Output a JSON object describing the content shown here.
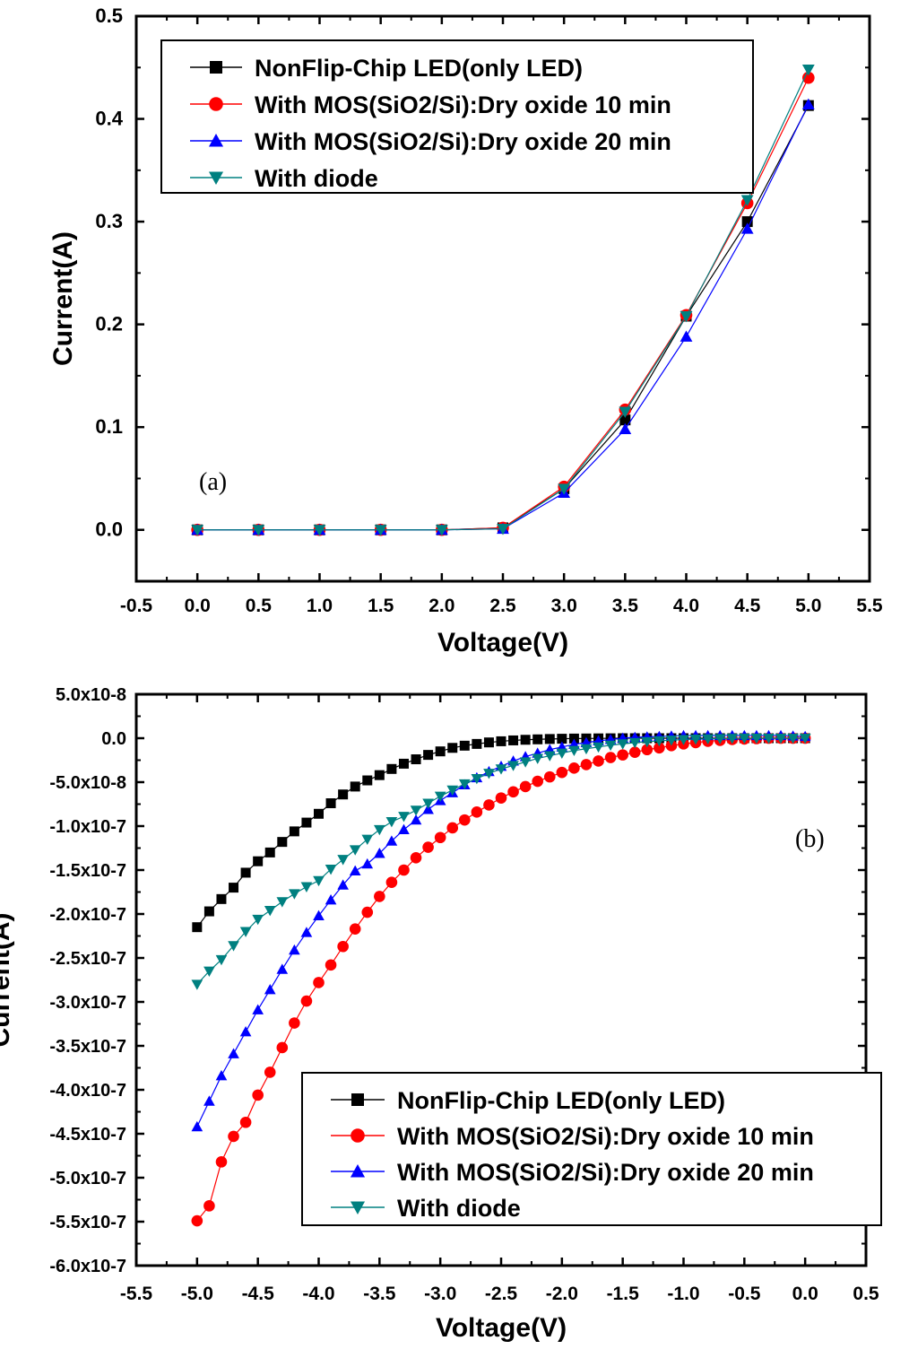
{
  "charts": [
    {
      "panel_label": "(a)",
      "xlabel": "Voltage(V)",
      "ylabel": "Current(A)",
      "xlim": [
        -0.5,
        5.5
      ],
      "ylim": [
        -0.05,
        0.5
      ],
      "x_ticks": [
        "-0.5",
        "0.0",
        "0.5",
        "1.0",
        "1.5",
        "2.0",
        "2.5",
        "3.0",
        "3.5",
        "4.0",
        "4.5",
        "5.0",
        "5.5"
      ],
      "y_ticks": [
        "0.0",
        "0.1",
        "0.2",
        "0.3",
        "0.4",
        "0.5"
      ],
      "legend": [
        "NonFlip-Chip LED(only LED)",
        "With MOS(SiO2/Si):Dry oxide 10 min",
        "With MOS(SiO2/Si):Dry oxide 20 min",
        "With diode"
      ]
    },
    {
      "panel_label": "(b)",
      "xlabel": "Voltage(V)",
      "ylabel": "Current(A)",
      "xlim": [
        -5.5,
        0.5
      ],
      "ylim": [
        -6e-07,
        5e-08
      ],
      "x_ticks": [
        "-5.5",
        "-5.0",
        "-4.5",
        "-4.0",
        "-3.5",
        "-3.0",
        "-2.5",
        "-2.0",
        "-1.5",
        "-1.0",
        "-0.5",
        "0.0",
        "0.5"
      ],
      "y_ticks": [
        "5.0x10-8",
        "0.0",
        "-5.0x10-8",
        "-1.0x10-7",
        "-1.5x10-7",
        "-2.0x10-7",
        "-2.5x10-7",
        "-3.0x10-7",
        "-3.5x10-7",
        "-4.0x10-7",
        "-4.5x10-7",
        "-5.0x10-7",
        "-5.5x10-7",
        "-6.0x10-7"
      ],
      "legend": [
        "NonFlip-Chip LED(only LED)",
        "With MOS(SiO2/Si):Dry oxide 10 min",
        "With MOS(SiO2/Si):Dry oxide 20 min",
        "With diode"
      ]
    }
  ],
  "series_styles": [
    {
      "color": "#000000",
      "marker": "square"
    },
    {
      "color": "#ff0000",
      "marker": "circle"
    },
    {
      "color": "#0000ff",
      "marker": "triangle-up"
    },
    {
      "color": "#008080",
      "marker": "triangle-down"
    }
  ],
  "chart_data": [
    {
      "type": "line",
      "title": "",
      "xlabel": "Voltage(V)",
      "ylabel": "Current(A)",
      "xlim": [
        -0.5,
        5.5
      ],
      "ylim": [
        -0.05,
        0.5
      ],
      "grid": false,
      "legend_position": "top-left",
      "x": [
        0.0,
        0.5,
        1.0,
        1.5,
        2.0,
        2.5,
        3.0,
        3.5,
        4.0,
        4.5,
        5.0
      ],
      "series": [
        {
          "name": "NonFlip-Chip LED(only LED)",
          "values": [
            0,
            0,
            0,
            0,
            0,
            0.002,
            0.04,
            0.107,
            0.208,
            0.3,
            0.413
          ]
        },
        {
          "name": "With MOS(SiO2/Si):Dry oxide 10 min",
          "values": [
            0,
            0,
            0,
            0,
            0,
            0.002,
            0.042,
            0.117,
            0.209,
            0.318,
            0.44
          ]
        },
        {
          "name": "With MOS(SiO2/Si):Dry oxide 20 min",
          "values": [
            0,
            0,
            0,
            0,
            0,
            0.001,
            0.036,
            0.098,
            0.188,
            0.293,
            0.414
          ]
        },
        {
          "name": "With diode",
          "values": [
            0,
            0,
            0,
            0,
            0,
            0.001,
            0.04,
            0.115,
            0.208,
            0.321,
            0.448
          ]
        }
      ]
    },
    {
      "type": "line",
      "title": "",
      "xlabel": "Voltage(V)",
      "ylabel": "Current(A)",
      "xlim": [
        -5.5,
        0.5
      ],
      "ylim": [
        -6e-07,
        5e-08
      ],
      "grid": false,
      "legend_position": "bottom-right",
      "x": [
        -5.0,
        -4.9,
        -4.8,
        -4.7,
        -4.6,
        -4.5,
        -4.4,
        -4.3,
        -4.2,
        -4.1,
        -4.0,
        -3.9,
        -3.8,
        -3.7,
        -3.6,
        -3.5,
        -3.4,
        -3.3,
        -3.2,
        -3.1,
        -3.0,
        -2.9,
        -2.8,
        -2.7,
        -2.6,
        -2.5,
        -2.4,
        -2.3,
        -2.2,
        -2.1,
        -2.0,
        -1.9,
        -1.8,
        -1.7,
        -1.6,
        -1.5,
        -1.4,
        -1.3,
        -1.2,
        -1.1,
        -1.0,
        -0.9,
        -0.8,
        -0.7,
        -0.6,
        -0.5,
        -0.4,
        -0.3,
        -0.2,
        -0.1,
        0.0
      ],
      "series": [
        {
          "name": "NonFlip-Chip LED(only LED)",
          "values": [
            -2.15e-07,
            -1.97e-07,
            -1.83e-07,
            -1.7e-07,
            -1.53e-07,
            -1.4e-07,
            -1.3e-07,
            -1.18e-07,
            -1.06e-07,
            -9.6e-08,
            -8.6e-08,
            -7.4e-08,
            -6.4e-08,
            -5.5e-08,
            -4.8e-08,
            -4.2e-08,
            -3.5e-08,
            -2.9e-08,
            -2.4e-08,
            -1.9e-08,
            -1.5e-08,
            -1.1e-08,
            -8.5e-09,
            -6.5e-09,
            -4.8e-09,
            -3.5e-09,
            -2.5e-09,
            -1.8e-09,
            -1.3e-09,
            -9e-10,
            -6e-10,
            -4e-10,
            -3e-10,
            -2e-10,
            -1e-10,
            0,
            0,
            0,
            0,
            0,
            0,
            0,
            0,
            0,
            0,
            0,
            0,
            0,
            0,
            0,
            0
          ]
        },
        {
          "name": "With MOS(SiO2/Si):Dry oxide 10 min",
          "values": [
            -5.49e-07,
            -5.32e-07,
            -4.82e-07,
            -4.53e-07,
            -4.37e-07,
            -4.06e-07,
            -3.8e-07,
            -3.52e-07,
            -3.24e-07,
            -2.99e-07,
            -2.78e-07,
            -2.58e-07,
            -2.37e-07,
            -2.17e-07,
            -1.98e-07,
            -1.8e-07,
            -1.64e-07,
            -1.5e-07,
            -1.36e-07,
            -1.24e-07,
            -1.13e-07,
            -1.02e-07,
            -9.3e-08,
            -8.4e-08,
            -7.6e-08,
            -6.8e-08,
            -6.1e-08,
            -5.5e-08,
            -4.9e-08,
            -4.4e-08,
            -3.9e-08,
            -3.4e-08,
            -3e-08,
            -2.6e-08,
            -2.2e-08,
            -1.9e-08,
            -1.6e-08,
            -1.3e-08,
            -1.1e-08,
            -8.5e-09,
            -6.5e-09,
            -5e-09,
            -3.5e-09,
            -2.5e-09,
            -1.5e-09,
            -1e-09,
            -5e-10,
            0,
            0,
            0,
            0
          ]
        },
        {
          "name": "With MOS(SiO2/Si):Dry oxide 20 min",
          "values": [
            -4.42e-07,
            -4.13e-07,
            -3.84e-07,
            -3.59e-07,
            -3.34e-07,
            -3.09e-07,
            -2.86e-07,
            -2.63e-07,
            -2.41e-07,
            -2.21e-07,
            -2.02e-07,
            -1.84e-07,
            -1.67e-07,
            -1.51e-07,
            -1.43e-07,
            -1.31e-07,
            -1.17e-07,
            -1.04e-07,
            -9.3e-08,
            -8.1e-08,
            -7.1e-08,
            -6.2e-08,
            -5.3e-08,
            -4.5e-08,
            -3.8e-08,
            -3.2e-08,
            -2.6e-08,
            -2.1e-08,
            -1.7e-08,
            -1.3e-08,
            -1e-08,
            -7e-09,
            -5e-09,
            -3e-09,
            -1.5e-09,
            0,
            1e-09,
            1.5e-09,
            2e-09,
            2.5e-09,
            3e-09,
            3e-09,
            3e-09,
            3e-09,
            3e-09,
            3e-09,
            3e-09,
            3e-09,
            3e-09,
            2.5e-09,
            2e-09
          ]
        },
        {
          "name": "With diode",
          "values": [
            -2.8e-07,
            -2.65e-07,
            -2.52e-07,
            -2.36e-07,
            -2.2e-07,
            -2.06e-07,
            -1.96e-07,
            -1.86e-07,
            -1.77e-07,
            -1.69e-07,
            -1.62e-07,
            -1.49e-07,
            -1.38e-07,
            -1.27e-07,
            -1.15e-07,
            -1.04e-07,
            -9.5e-08,
            -8.9e-08,
            -8.2e-08,
            -7.4e-08,
            -6.6e-08,
            -5.9e-08,
            -5.2e-08,
            -4.6e-08,
            -4e-08,
            -3.5e-08,
            -3.1e-08,
            -2.7e-08,
            -2.3e-08,
            -2e-08,
            -1.7e-08,
            -1.4e-08,
            -1.2e-08,
            -1e-08,
            -8e-09,
            -6.5e-09,
            -5e-09,
            -4e-09,
            -3e-09,
            -2.2e-09,
            -1.6e-09,
            -1.1e-09,
            -7e-10,
            -4e-10,
            -2e-10,
            0,
            0,
            0,
            0,
            0,
            0
          ]
        }
      ]
    }
  ]
}
